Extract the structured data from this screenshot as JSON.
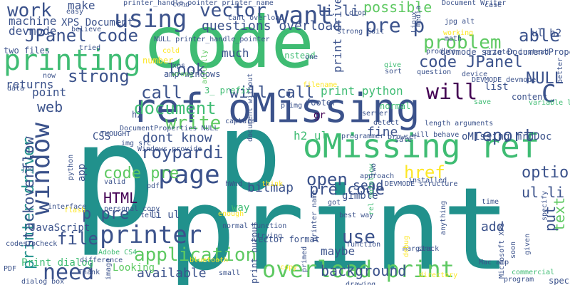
{
  "palette": [
    "#440154",
    "#3b528b",
    "#21918c",
    "#5ec962",
    "#fde725"
  ],
  "words": [
    {
      "t": "p",
      "c": "#21918c"
    },
    {
      "t": "print",
      "c": "#21918c"
    },
    {
      "t": "code",
      "c": "#3fbc73"
    },
    {
      "t": "p",
      "c": "#21918c"
    },
    {
      "t": "ref oMissing",
      "c": "#3b528b"
    },
    {
      "t": "oMissing ref",
      "c": "#3fbc73"
    },
    {
      "t": "printing",
      "c": "#3fbc73"
    },
    {
      "t": "printer",
      "c": "#3b528b"
    },
    {
      "t": "using",
      "c": "#3b528b"
    },
    {
      "t": "page",
      "c": "#3b528b"
    },
    {
      "t": "window",
      "c": "#3b528b"
    },
    {
      "t": "need",
      "c": "#3b528b"
    },
    {
      "t": "overload print",
      "c": "#5ec962"
    },
    {
      "t": "application",
      "c": "#5ec962"
    },
    {
      "t": "background",
      "c": "#3b528b"
    },
    {
      "t": "use",
      "c": "#3b528b"
    },
    {
      "t": "want",
      "c": "#3b528b"
    },
    {
      "t": "vector",
      "c": "#3b528b"
    },
    {
      "t": "JPanel code",
      "c": "#3b528b"
    },
    {
      "t": "strong",
      "c": "#3b528b"
    },
    {
      "t": "call",
      "c": "#3b528b"
    },
    {
      "t": "will call",
      "c": "#3b528b"
    },
    {
      "t": "document",
      "c": "#3fbc73"
    },
    {
      "t": "write",
      "c": "#5ec962"
    },
    {
      "t": "dont know",
      "c": "#3b528b"
    },
    {
      "t": "roypardi",
      "c": "#3b528b"
    },
    {
      "t": "code pre",
      "c": "#5ec962"
    },
    {
      "t": "HTML",
      "c": "#440154"
    },
    {
      "t": "p pre",
      "c": "#3b528b"
    },
    {
      "t": "file",
      "c": "#3b528b"
    },
    {
      "t": "printer driver",
      "c": "#21918c"
    },
    {
      "t": "stackoverflow",
      "c": "#3b528b"
    },
    {
      "t": "web",
      "c": "#3b528b"
    },
    {
      "t": "look",
      "c": "#3b528b"
    },
    {
      "t": "open",
      "c": "#3b528b"
    },
    {
      "t": "bitmap",
      "c": "#3b528b"
    },
    {
      "t": "pre code",
      "c": "#3b528b"
    },
    {
      "t": "href",
      "c": "#fde725"
    },
    {
      "t": "report",
      "c": "#3b528b"
    },
    {
      "t": "option",
      "c": "#3b528b"
    },
    {
      "t": "ul li",
      "c": "#3b528b"
    },
    {
      "t": "text",
      "c": "#5ec962"
    },
    {
      "t": "code JPanel",
      "c": "#3b528b"
    },
    {
      "t": "problem",
      "c": "#5ec962"
    },
    {
      "t": "will",
      "c": "#440154"
    },
    {
      "t": "C",
      "c": "#3b528b"
    },
    {
      "t": "NULL",
      "c": "#3b528b"
    },
    {
      "t": "li li",
      "c": "#3b528b"
    },
    {
      "t": "able",
      "c": "#3b528b"
    },
    {
      "t": "pre p",
      "c": "#3b528b"
    },
    {
      "t": "possible",
      "c": "#5ec962"
    },
    {
      "t": "work",
      "c": "#3b528b"
    },
    {
      "t": "questions overload",
      "c": "#3b528b"
    },
    {
      "t": "much",
      "c": "#3b528b"
    },
    {
      "t": "print python",
      "c": "#3fbc73"
    },
    {
      "t": "available",
      "c": "#3b528b"
    },
    {
      "t": "maybe",
      "c": "#3b528b"
    },
    {
      "t": "way",
      "c": "#3fbc73"
    },
    {
      "t": "gimble",
      "c": "#3b528b"
    },
    {
      "t": "send",
      "c": "#3b528b"
    },
    {
      "t": "fine",
      "c": "#3b528b"
    },
    {
      "t": "h2 ul",
      "c": "#3fbc73"
    },
    {
      "t": "add",
      "c": "#3b528b"
    },
    {
      "t": "put",
      "c": "#3b528b"
    },
    {
      "t": "list",
      "c": "#3b528b"
    },
    {
      "t": "point",
      "c": "#3b528b"
    },
    {
      "t": "returns",
      "c": "#3b528b"
    },
    {
      "t": "machine",
      "c": "#3b528b"
    },
    {
      "t": "devmode",
      "c": "#3b528b"
    },
    {
      "t": "make",
      "c": "#3b528b"
    },
    {
      "t": "li ul",
      "c": "#3b528b"
    },
    {
      "t": "JavaScript",
      "c": "#3b528b"
    },
    {
      "t": "Print dialog",
      "c": "#3fbc73"
    },
    {
      "t": "print driver",
      "c": "#3b528b"
    },
    {
      "t": "CSS",
      "c": "#3b528b"
    },
    {
      "t": "app",
      "c": "#3b528b"
    },
    {
      "t": "XPS Document",
      "c": "#3b528b"
    },
    {
      "t": "gr",
      "c": "#440154"
    },
    {
      "t": "two files",
      "c": "#3b528b"
    },
    {
      "t": "h2",
      "c": "#3b528b"
    },
    {
      "t": "oMissing mrdDoc",
      "c": "#3b528b"
    },
    {
      "t": "ul h2",
      "c": "#3b528b"
    },
    {
      "t": "working",
      "c": "#fde725"
    },
    {
      "t": "Document Writer",
      "c": "#3b528b"
    },
    {
      "t": "printer_handle_pointer printer_name",
      "c": "#3b528b"
    },
    {
      "t": "vector format",
      "c": "#3b528b"
    },
    {
      "t": "print output",
      "c": "#3b528b"
    },
    {
      "t": "codesToCheck",
      "c": "#3b528b"
    },
    {
      "t": "Mac amp",
      "c": "#3b528b"
    },
    {
      "t": "Microsoft XPS",
      "c": "#3b528b"
    },
    {
      "t": "specific line",
      "c": "#3b528b"
    },
    {
      "t": "Looking",
      "c": "#5ec962"
    },
    {
      "t": "PDF",
      "c": "#3b528b"
    },
    {
      "t": "dialog box",
      "c": "#3b528b"
    },
    {
      "t": "Thank",
      "c": "#3b528b"
    },
    {
      "t": "small",
      "c": "#3b528b"
    },
    {
      "t": "trying",
      "c": "#3b528b"
    },
    {
      "t": "best way",
      "c": "#3b528b"
    },
    {
      "t": "function",
      "c": "#3b528b"
    },
    {
      "t": "commercial",
      "c": "#3fbc73"
    },
    {
      "t": "margins",
      "c": "#3b528b"
    },
    {
      "t": "program",
      "c": "#3b528b"
    },
    {
      "t": "tried",
      "c": "#3b528b"
    },
    {
      "t": "easy",
      "c": "#3b528b"
    },
    {
      "t": "believe",
      "c": "#3b528b"
    },
    {
      "t": "math",
      "c": "#3b528b"
    },
    {
      "t": "printer instead",
      "c": "#3b528b"
    },
    {
      "t": "devmode_size DocumentProperties",
      "c": "#3b528b"
    },
    {
      "t": "produce",
      "c": "#3b528b"
    },
    {
      "t": "number",
      "c": "#fde725"
    },
    {
      "t": "amp windows",
      "c": "#3b528b"
    },
    {
      "t": "instead",
      "c": "#3fbc73"
    },
    {
      "t": "give",
      "c": "#3fbc73"
    },
    {
      "t": "sort",
      "c": "#3b528b"
    },
    {
      "t": "question",
      "c": "#3b528b"
    },
    {
      "t": "device",
      "c": "#3b528b"
    },
    {
      "t": "DEVMODE devmode",
      "c": "#3b528b"
    },
    {
      "t": "content",
      "c": "#3b528b"
    },
    {
      "t": "save",
      "c": "#3fbc73"
    },
    {
      "t": "variable length",
      "c": "#3fbc73"
    },
    {
      "t": "normal",
      "c": "#3fbc73"
    },
    {
      "t": "footer",
      "c": "#3b528b"
    },
    {
      "t": "server",
      "c": "#3b528b"
    },
    {
      "t": "detect",
      "c": "#3b528b"
    },
    {
      "t": "length arguments",
      "c": "#3b528b"
    },
    {
      "t": "will behave",
      "c": "#3b528b"
    },
    {
      "t": "browser",
      "c": "#3b528b"
    },
    {
      "t": "capture",
      "c": "#3b528b"
    },
    {
      "t": "img src",
      "c": "#3b528b"
    },
    {
      "t": "Windows provide",
      "c": "#3b528b"
    },
    {
      "t": "interface",
      "c": "#3b528b"
    },
    {
      "t": "flash",
      "c": "#fde725"
    },
    {
      "t": "personal copy",
      "c": "#3b528b"
    },
    {
      "t": "normal function",
      "c": "#3b528b"
    },
    {
      "t": "enough",
      "c": "#fde725"
    },
    {
      "t": "tell",
      "c": "#3b528b"
    },
    {
      "t": "difference",
      "c": "#3b528b"
    },
    {
      "t": "Adobe CS4",
      "c": "#3fbc73"
    },
    {
      "t": "bluetooth",
      "c": "#fde725"
    },
    {
      "t": "THOUGHT",
      "c": "#3b528b"
    },
    {
      "t": "DocumentProperties NULL",
      "c": "#3b528b"
    },
    {
      "t": "approach",
      "c": "#3b528b"
    },
    {
      "t": "DEVMODE structure",
      "c": "#3b528b"
    },
    {
      "t": "rel nofollow",
      "c": "#3fbc73"
    },
    {
      "t": "printer_name",
      "c": "#3b528b"
    },
    {
      "t": "3_ prefix",
      "c": "#3fbc73"
    },
    {
      "t": "NULL printer_handle_pointer",
      "c": "#3b528b"
    },
    {
      "t": "cant overload",
      "c": "#3b528b"
    },
    {
      "t": "drop",
      "c": "#3b528b"
    },
    {
      "t": "case",
      "c": "#3b528b"
    },
    {
      "t": "jpg alt",
      "c": "#3b528b"
    },
    {
      "t": "Linux",
      "c": "#3b528b"
    },
    {
      "t": "strong Edit",
      "c": "#3b528b"
    },
    {
      "t": "cono",
      "c": "#3b528b"
    },
    {
      "t": "now",
      "c": "#3b528b"
    },
    {
      "t": "xps",
      "c": "#3b528b"
    },
    {
      "t": "wrong",
      "c": "#5ec962"
    },
    {
      "t": "actually",
      "c": "#5ec962"
    },
    {
      "t": "filename",
      "c": "#fde725"
    },
    {
      "t": "p img",
      "c": "#3b528b"
    },
    {
      "t": "programmer",
      "c": "#3b528b"
    },
    {
      "t": "sale",
      "c": "#3b528b"
    },
    {
      "t": "two",
      "c": "#3b528b"
    },
    {
      "t": "installed",
      "c": "#3b528b"
    },
    {
      "t": "got",
      "c": "#3b528b"
    },
    {
      "t": "think",
      "c": "#fde725"
    },
    {
      "t": "hWnd",
      "c": "#3b528b"
    },
    {
      "t": "valid",
      "c": "#3b528b"
    },
    {
      "t": "jpg",
      "c": "#3b528b"
    },
    {
      "t": "data",
      "c": "#3b528b"
    },
    {
      "t": "python",
      "c": "#3b528b"
    },
    {
      "t": "pdf",
      "c": "#3b528b"
    },
    {
      "t": "document without",
      "c": "#3b528b"
    },
    {
      "t": "primed",
      "c": "#3b528b"
    },
    {
      "t": "drawing",
      "c": "#3b528b"
    },
    {
      "t": "soon",
      "c": "#3b528b"
    },
    {
      "t": "given",
      "c": "#3b528b"
    },
    {
      "t": "specify",
      "c": "#3b528b"
    },
    {
      "t": "better",
      "c": "#3b528b"
    },
    {
      "t": "directory",
      "c": "#fde725"
    },
    {
      "t": "time",
      "c": "#3b528b"
    },
    {
      "t": "image",
      "c": "#3b528b"
    },
    {
      "t": "copy",
      "c": "#fde725"
    },
    {
      "t": "anything",
      "c": "#3b528b"
    },
    {
      "t": "stack",
      "c": "#3b528b"
    },
    {
      "t": "cold",
      "c": "#fde725"
    },
    {
      "t": "debug",
      "c": "#fde725"
    },
    {
      "t": "media",
      "c": "#3b528b"
    },
    {
      "t": "one",
      "c": "#3b528b"
    },
    {
      "t": "real",
      "c": "#3b528b"
    }
  ]
}
